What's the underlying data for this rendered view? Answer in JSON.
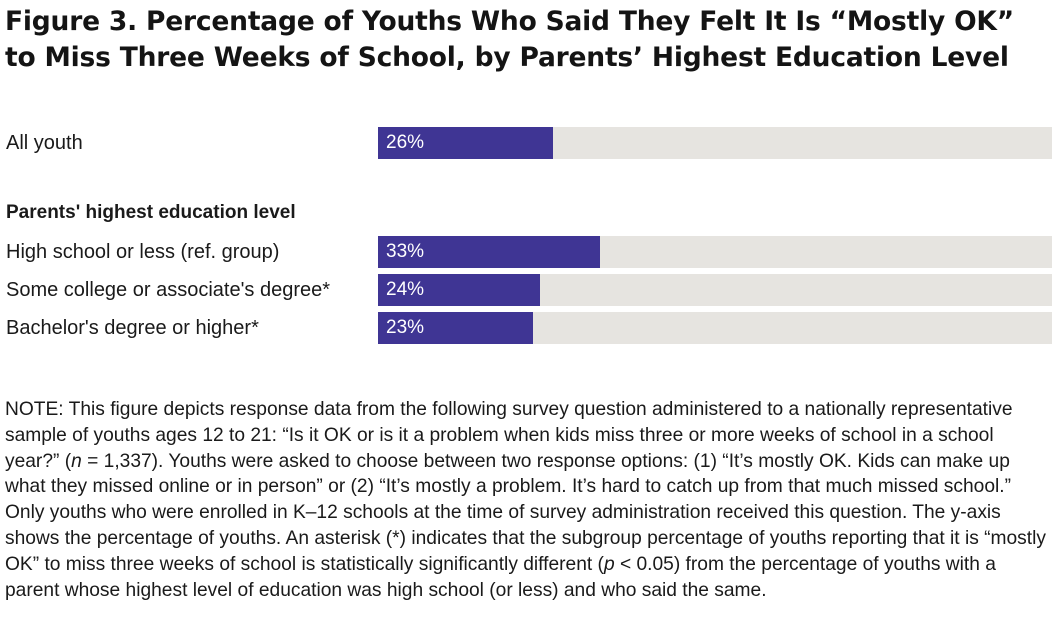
{
  "chart_data": {
    "type": "bar",
    "orientation": "horizontal",
    "title_prefix": "Figure 3.",
    "title": "Percentage of Youths Who Said They Felt It Is “Mostly OK” to Miss Three Weeks of School, by Parents’ Highest Education Level",
    "group_header": "Parents' highest education level",
    "categories": [
      "All youth",
      "High school or less (ref. group)",
      "Some college or associate's degree*",
      "Bachelor's degree or higher*"
    ],
    "values": [
      26,
      33,
      24,
      23
    ],
    "value_labels": [
      "26%",
      "33%",
      "24%",
      "23%"
    ],
    "xlim": [
      0,
      100
    ],
    "grid": false,
    "bar_color": "#3f3594",
    "track_color": "#e6e4e0"
  },
  "note": {
    "p1": "NOTE: This figure depicts response data from the following survey question administered to a nationally representative sample of youths ages 12 to 21: “Is it OK or is it a problem when kids miss three or more weeks of school in a school year?” (",
    "n_symbol": "n",
    "p2": " = 1,337). Youths were asked to choose between two response options: (1) “It’s mostly OK. Kids can make up what they missed online or in person” or (2) “It’s mostly a problem. It’s hard to catch up from that much missed school.” Only youths who were enrolled in K–12 schools at the time of survey administration received this question. The y-axis shows the percentage of youths. An asterisk (*) indicates that the subgroup percentage of youths reporting that it is “mostly OK” to miss three weeks of school is statistically significantly different (",
    "p_symbol": "p",
    "p3": " < 0.05) from the percentage of youths with a parent whose highest level of education was high school (or less) and who said the same."
  }
}
